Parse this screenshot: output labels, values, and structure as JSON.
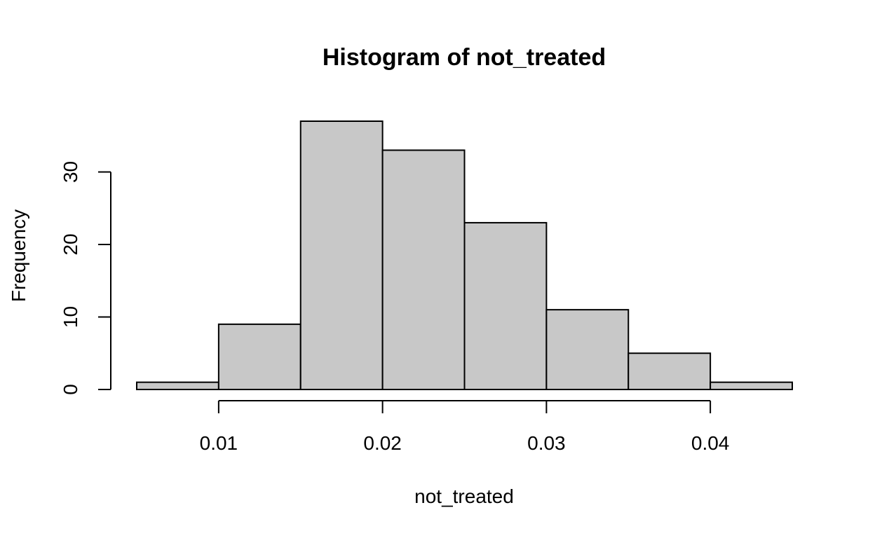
{
  "chart_data": {
    "type": "bar",
    "title": "Histogram of not_treated",
    "xlabel": "not_treated",
    "ylabel": "Frequency",
    "bins": [
      {
        "start": 0.005,
        "end": 0.01,
        "count": 1
      },
      {
        "start": 0.01,
        "end": 0.015,
        "count": 9
      },
      {
        "start": 0.015,
        "end": 0.02,
        "count": 37
      },
      {
        "start": 0.02,
        "end": 0.025,
        "count": 33
      },
      {
        "start": 0.025,
        "end": 0.03,
        "count": 23
      },
      {
        "start": 0.03,
        "end": 0.035,
        "count": 11
      },
      {
        "start": 0.035,
        "end": 0.04,
        "count": 5
      },
      {
        "start": 0.04,
        "end": 0.045,
        "count": 1
      }
    ],
    "xlim": [
      0.005,
      0.045
    ],
    "ylim": [
      0,
      37
    ],
    "x_ticks": [
      0.01,
      0.02,
      0.03,
      0.04
    ],
    "x_tick_labels": [
      "0.01",
      "0.02",
      "0.03",
      "0.04"
    ],
    "y_ticks": [
      0,
      10,
      20,
      30
    ],
    "y_tick_labels": [
      "0",
      "10",
      "20",
      "30"
    ],
    "grid": false,
    "colors": {
      "bar_fill": "#c8c8c8",
      "bar_stroke": "#000000",
      "axis": "#000000",
      "text": "#000000",
      "background": "#ffffff"
    }
  }
}
